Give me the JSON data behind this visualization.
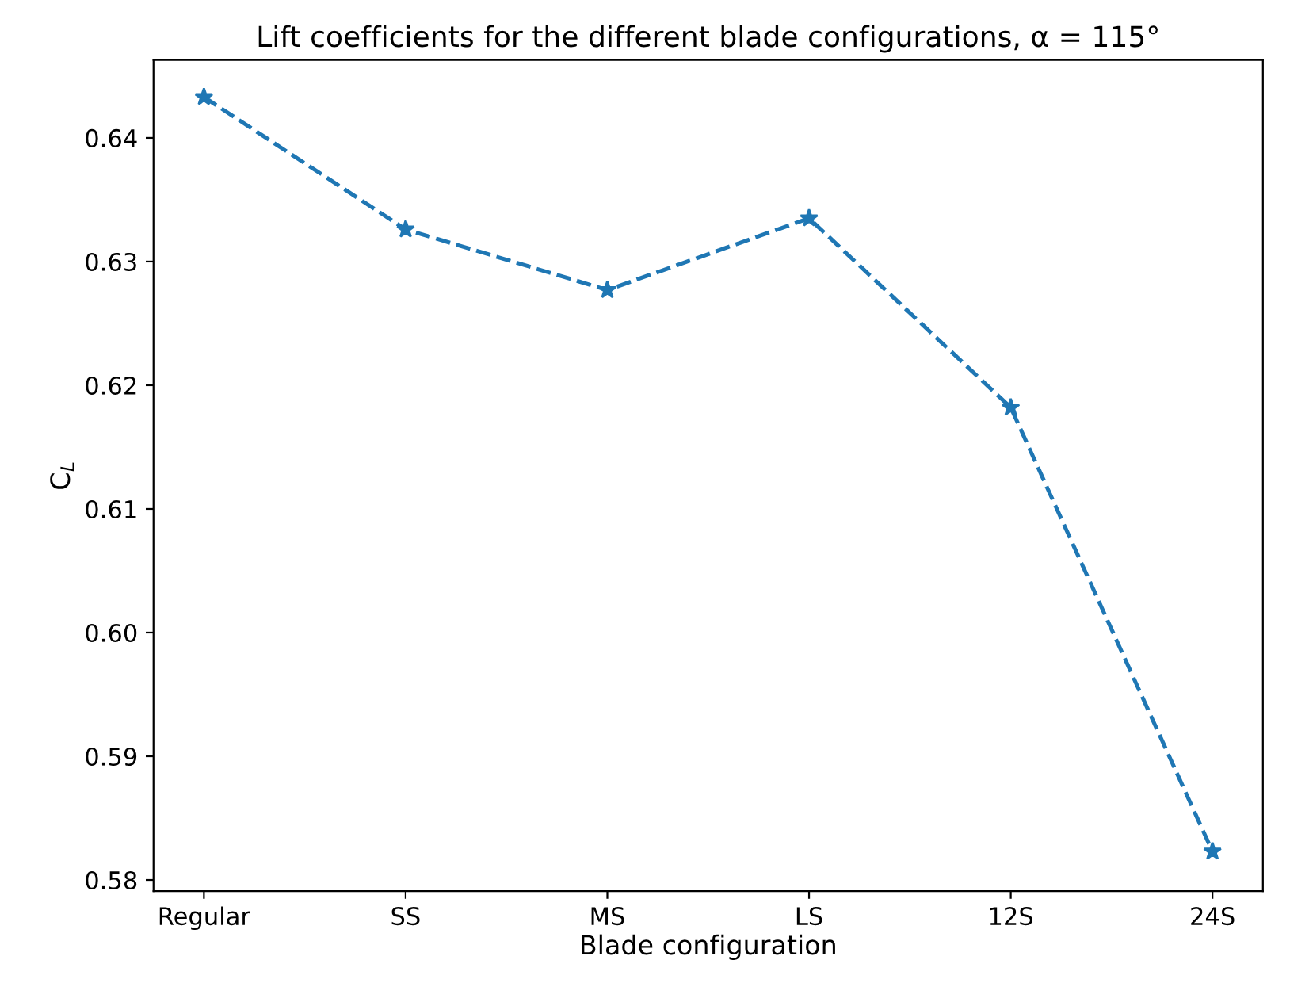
{
  "chart_data": {
    "type": "line",
    "title": "Lift coefficients for the different blade configurations, α = 115°",
    "xlabel": "Blade configuration",
    "ylabel": "C$_{L}$",
    "categories": [
      "Regular",
      "SS",
      "MS",
      "LS",
      "12S",
      "24S"
    ],
    "series": [
      {
        "color": "#1f77b4",
        "values": [
          0.6433,
          0.6326,
          0.6277,
          0.6335,
          0.6182,
          0.5823
        ]
      }
    ],
    "ylim": [
      0.5791,
      0.6463
    ],
    "yticks": [
      0.58,
      0.59,
      {
        "value": 0.6,
        "label": "0.60"
      },
      0.61,
      0.62,
      0.63,
      0.64
    ],
    "marker": "star",
    "line_style": "dashed",
    "grid": false,
    "legend": false
  }
}
